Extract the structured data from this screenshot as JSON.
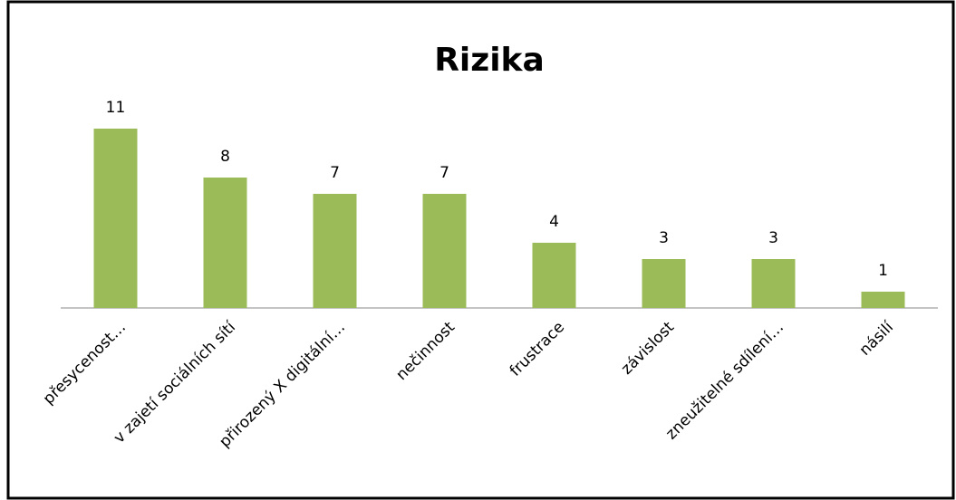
{
  "chart_data": {
    "type": "bar",
    "title": "Rizika",
    "categories": [
      "přesycenost…",
      "v zajetí sociálních sítí",
      "přirozený X digitální…",
      "nečinnost",
      "frustrace",
      "závislost",
      "zneužitelné sdílení…",
      "násilí"
    ],
    "values": [
      11,
      8,
      7,
      7,
      4,
      3,
      3,
      1
    ],
    "color": "#9bbb59"
  }
}
